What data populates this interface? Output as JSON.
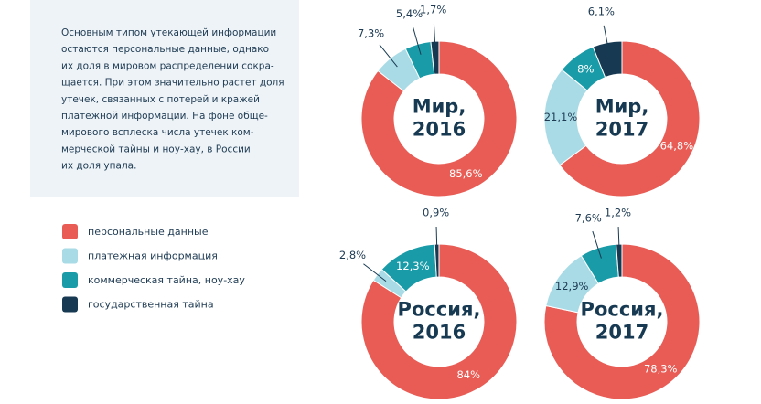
{
  "description": [
    "Основным типом утекающей информации",
    "остаются персональные данные, однако",
    "их доля в мировом распределении сокра-",
    "щается. При этом значительно растет доля",
    "утечек, связанных с потерей и кражей",
    "платежной информации. На фоне обще-",
    "мирового всплеска числа утечек ком-",
    "мерческой тайны и ноу-хау, в России",
    "их доля упала."
  ],
  "legend": {
    "categories": [
      "персональные данные",
      "платежная информация",
      "коммерческая тайна, ноу-хау",
      "государственная тайна"
    ],
    "colors": [
      "#e85c55",
      "#a9dbe6",
      "#1a9ba8",
      "#173a52"
    ]
  },
  "chart_data": [
    {
      "type": "pie",
      "title": "Мир, 2016",
      "values": [
        85.6,
        7.3,
        5.4,
        1.7
      ],
      "value_labels": [
        "85,6%",
        "7,3%",
        "5,4%",
        "1,7%"
      ]
    },
    {
      "type": "pie",
      "title": "Мир, 2017",
      "values": [
        64.8,
        21.1,
        8,
        6.1
      ],
      "value_labels": [
        "64,8%",
        "21,1%",
        "8%",
        "6,1%"
      ]
    },
    {
      "type": "pie",
      "title": "Россия, 2016",
      "values": [
        84,
        2.8,
        12.3,
        0.9
      ],
      "value_labels": [
        "84%",
        "2,8%",
        "12,3%",
        "0,9%"
      ]
    },
    {
      "type": "pie",
      "title": "Россия, 2017",
      "values": [
        78.3,
        12.9,
        7.6,
        1.2
      ],
      "value_labels": [
        "78,3%",
        "12,9%",
        "7,6%",
        "1,2%"
      ]
    }
  ]
}
